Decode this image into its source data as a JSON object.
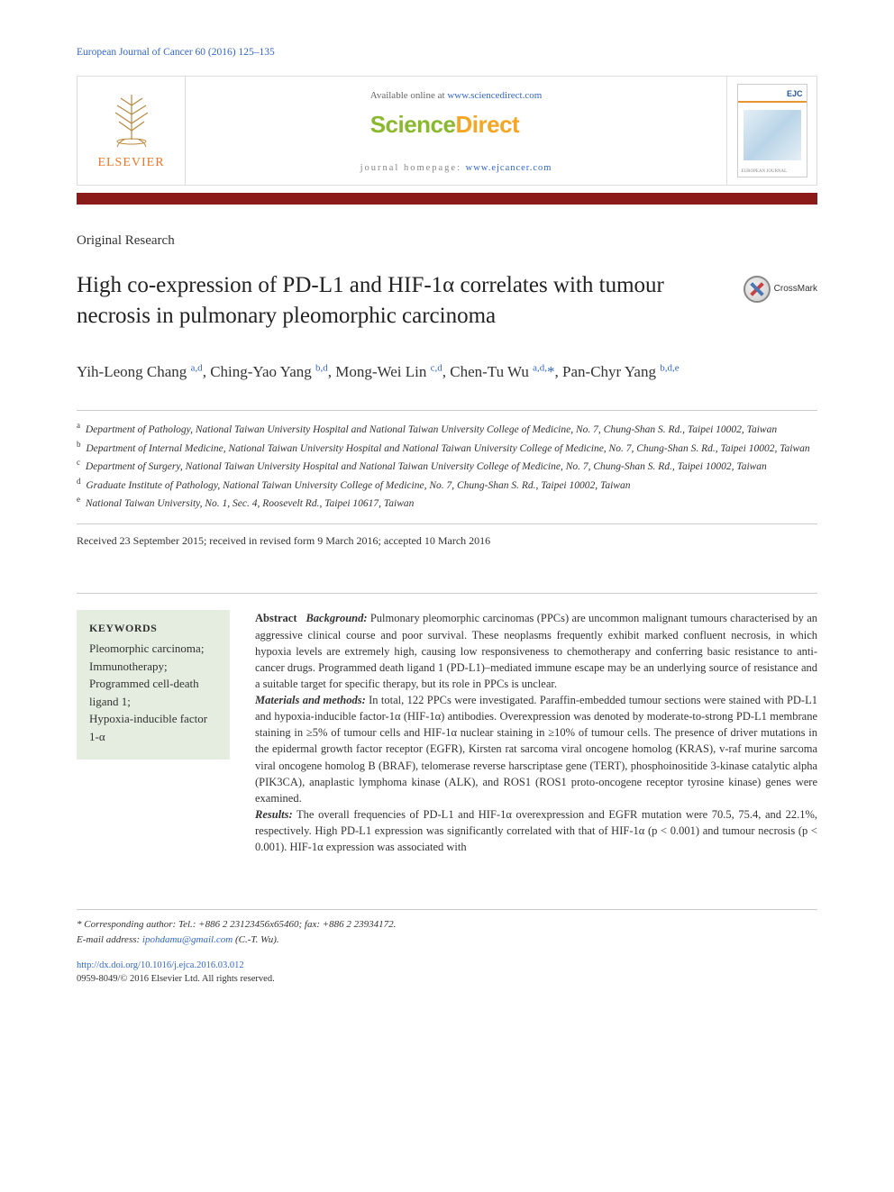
{
  "colors": {
    "link": "#3366cc",
    "red_bar": "#8b1a1a",
    "kw_bg": "#e4ede0",
    "elsevier_orange": "#e97826",
    "sd_green": "#8bb92e",
    "sd_orange": "#f5a623",
    "border": "#cccccc"
  },
  "citation": "European Journal of Cancer  60 (2016) 125–135",
  "header": {
    "elsevier_label": "ELSEVIER",
    "available_prefix": "Available online at ",
    "available_link": "www.sciencedirect.com",
    "sd_logo_1": "Science",
    "sd_logo_2": "Direct",
    "homepage_prefix": "journal homepage: ",
    "homepage_link": "www.ejcancer.com",
    "cover_label": "EJC"
  },
  "article_type": "Original Research",
  "title": "High co-expression of PD-L1 and HIF-1α correlates with tumour necrosis in pulmonary pleomorphic carcinoma",
  "crossmark_label": "CrossMark",
  "authors_html": "Yih-Leong Chang <sup>a,d</sup>, Ching-Yao Yang <sup>b,d</sup>, Mong-Wei Lin <sup>c,d</sup>, Chen-Tu Wu <sup>a,d,</sup><span class='star'>*</span>, Pan-Chyr Yang <sup>b,d,e</sup>",
  "affiliations": [
    {
      "sup": "a",
      "text": "Department of Pathology, National Taiwan University Hospital and National Taiwan University College of Medicine, No. 7, Chung-Shan S. Rd., Taipei 10002, Taiwan"
    },
    {
      "sup": "b",
      "text": "Department of Internal Medicine, National Taiwan University Hospital and National Taiwan University College of Medicine, No. 7, Chung-Shan S. Rd., Taipei 10002, Taiwan"
    },
    {
      "sup": "c",
      "text": "Department of Surgery, National Taiwan University Hospital and National Taiwan University College of Medicine, No. 7, Chung-Shan S. Rd., Taipei 10002, Taiwan"
    },
    {
      "sup": "d",
      "text": "Graduate Institute of Pathology, National Taiwan University College of Medicine, No. 7, Chung-Shan S. Rd., Taipei 10002, Taiwan"
    },
    {
      "sup": "e",
      "text": "National Taiwan University, No. 1, Sec. 4, Roosevelt Rd., Taipei 10617, Taiwan"
    }
  ],
  "received": "Received 23 September 2015; received in revised form 9 March 2016; accepted 10 March 2016",
  "keywords": {
    "heading": "KEYWORDS",
    "items": [
      "Pleomorphic carcinoma;",
      "Immunotherapy;",
      "Programmed cell-death ligand 1;",
      "Hypoxia-inducible factor 1-α"
    ]
  },
  "abstract": {
    "label": "Abstract",
    "sections": [
      {
        "label": "Background:",
        "text": "Pulmonary pleomorphic carcinomas (PPCs) are uncommon malignant tumours characterised by an aggressive clinical course and poor survival. These neoplasms frequently exhibit marked confluent necrosis, in which hypoxia levels are extremely high, causing low responsiveness to chemotherapy and conferring basic resistance to anti-cancer drugs. Programmed death ligand 1 (PD-L1)–mediated immune escape may be an underlying source of resistance and a suitable target for specific therapy, but its role in PPCs is unclear."
      },
      {
        "label": "Materials and methods:",
        "text": "In total, 122 PPCs were investigated. Paraffin-embedded tumour sections were stained with PD-L1 and hypoxia-inducible factor-1α (HIF-1α) antibodies. Overexpression was denoted by moderate-to-strong PD-L1 membrane staining in ≥5% of tumour cells and HIF-1α nuclear staining in ≥10% of tumour cells. The presence of driver mutations in the epidermal growth factor receptor (EGFR), Kirsten rat sarcoma viral oncogene homolog (KRAS), v-raf murine sarcoma viral oncogene homolog B (BRAF), telomerase reverse harscriptase gene (TERT), phosphoinositide 3-kinase catalytic alpha (PIK3CA), anaplastic lymphoma kinase (ALK), and ROS1 (ROS1 proto-oncogene receptor tyrosine kinase) genes were examined."
      },
      {
        "label": "Results:",
        "text": "The overall frequencies of PD-L1 and HIF-1α overexpression and EGFR mutation were 70.5, 75.4, and 22.1%, respectively. High PD-L1 expression was significantly correlated with that of HIF-1α (p < 0.001) and tumour necrosis (p < 0.001). HIF-1α expression was associated with"
      }
    ]
  },
  "footer": {
    "corresponding_label": "* Corresponding author:",
    "corresponding_text": " Tel.: +886 2 23123456x65460; fax: +886 2 23934172.",
    "email_label": "E-mail address:",
    "email_value": "ipohdamu@gmail.com",
    "email_suffix": " (C.-T. Wu)."
  },
  "doi": {
    "url": "http://dx.doi.org/10.1016/j.ejca.2016.03.012",
    "issn_line": "0959-8049/© 2016 Elsevier Ltd. All rights reserved."
  }
}
